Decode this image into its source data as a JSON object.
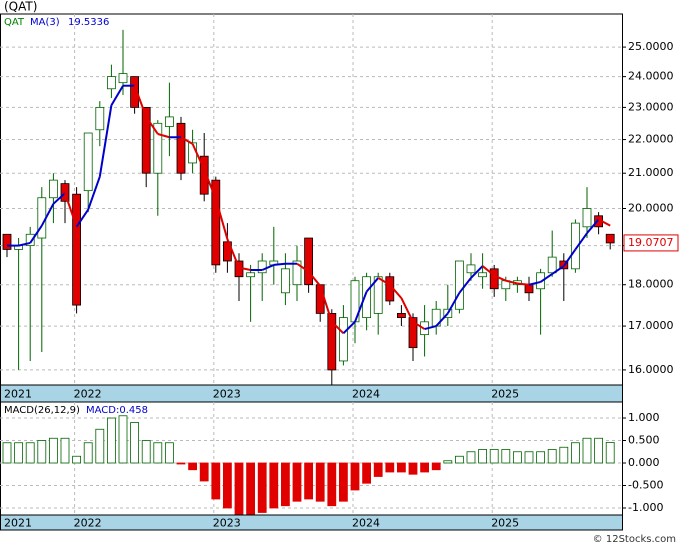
{
  "chart_data": [
    {
      "type": "candlestick",
      "title": "(QAT)",
      "symbol": "QAT",
      "scale": "log",
      "categories": [
        "2021",
        null,
        null,
        null,
        null,
        null,
        "2022",
        null,
        null,
        null,
        null,
        null,
        null,
        null,
        null,
        null,
        null,
        null,
        "2023",
        null,
        null,
        null,
        null,
        null,
        null,
        null,
        null,
        null,
        null,
        null,
        "2024",
        null,
        null,
        null,
        null,
        null,
        null,
        null,
        null,
        null,
        null,
        null,
        "2025",
        null,
        null,
        null,
        null,
        null,
        null,
        null,
        null,
        null,
        null
      ],
      "open": [
        19.3,
        18.9,
        19.0,
        19.2,
        20.3,
        20.7,
        20.4,
        20.5,
        22.3,
        23.6,
        23.8,
        24.0,
        23.0,
        21.0,
        22.4,
        22.5,
        21.3,
        21.5,
        20.8,
        19.1,
        18.6,
        18.2,
        18.3,
        18.5,
        17.8,
        18.0,
        19.2,
        18.0,
        17.3,
        16.2,
        17.1,
        17.2,
        17.3,
        18.2,
        17.3,
        17.2,
        16.8,
        17.0,
        17.2,
        17.4,
        18.3,
        18.2,
        18.4,
        17.9,
        18.0,
        18.0,
        17.9,
        18.3,
        18.6,
        18.4,
        19.5,
        19.8,
        19.3
      ],
      "high": [
        19.3,
        19.2,
        19.5,
        20.6,
        21.0,
        20.8,
        20.6,
        22.2,
        23.2,
        24.4,
        25.6,
        24.0,
        23.0,
        22.6,
        23.8,
        22.7,
        22.3,
        22.2,
        20.9,
        19.6,
        18.8,
        18.5,
        18.8,
        19.5,
        18.8,
        19.0,
        19.2,
        18.0,
        17.4,
        17.5,
        18.2,
        18.3,
        18.3,
        18.3,
        17.5,
        17.3,
        17.5,
        17.6,
        18.0,
        18.6,
        18.8,
        18.8,
        18.5,
        18.2,
        18.2,
        18.2,
        18.4,
        19.4,
        18.8,
        19.7,
        20.6,
        19.9,
        19.3
      ],
      "low": [
        18.7,
        16.0,
        16.2,
        16.4,
        19.6,
        19.6,
        17.3,
        19.9,
        21.8,
        23.3,
        23.4,
        22.8,
        20.6,
        19.8,
        21.5,
        20.8,
        21.0,
        20.2,
        18.3,
        18.3,
        17.6,
        17.1,
        17.6,
        18.0,
        17.5,
        17.6,
        17.8,
        17.1,
        15.6,
        16.1,
        16.6,
        16.9,
        16.8,
        17.5,
        17.0,
        16.2,
        16.3,
        16.8,
        17.0,
        17.3,
        18.1,
        17.9,
        17.7,
        17.6,
        17.8,
        17.6,
        16.8,
        18.2,
        17.6,
        18.3,
        19.2,
        19.3,
        18.9
      ],
      "close": [
        18.9,
        19.0,
        19.3,
        20.3,
        20.8,
        20.2,
        17.5,
        22.2,
        23.0,
        24.0,
        24.1,
        23.0,
        21.0,
        22.5,
        22.7,
        21.0,
        21.9,
        20.4,
        18.5,
        18.6,
        18.2,
        18.3,
        18.6,
        18.6,
        18.4,
        18.6,
        18.0,
        17.3,
        16.0,
        17.2,
        18.1,
        18.2,
        18.2,
        17.6,
        17.2,
        16.5,
        17.1,
        17.4,
        17.4,
        18.6,
        18.5,
        18.3,
        17.9,
        18.1,
        18.1,
        17.8,
        18.3,
        18.7,
        18.4,
        19.6,
        20.0,
        19.5,
        19.0707
      ],
      "ma": {
        "name": "MA(3)",
        "values": [
          19.0,
          19.0,
          19.07,
          19.53,
          20.13,
          20.43,
          19.5,
          19.97,
          20.9,
          23.07,
          23.7,
          23.7,
          22.7,
          22.17,
          22.07,
          22.07,
          21.87,
          21.1,
          20.27,
          19.17,
          18.43,
          18.37,
          18.37,
          18.5,
          18.53,
          18.53,
          18.33,
          17.97,
          17.1,
          16.83,
          17.1,
          17.83,
          18.17,
          18.0,
          17.67,
          17.1,
          16.93,
          17.0,
          17.3,
          17.8,
          18.17,
          18.47,
          18.23,
          18.1,
          18.03,
          18.0,
          18.07,
          18.27,
          18.47,
          18.9,
          19.33,
          19.7,
          19.5336
        ]
      },
      "up_color": "#006400",
      "down_color": "#e00000",
      "ma_up_color": "#0000cc",
      "ma_down_color": "#e00000",
      "symbol_color": "#008000",
      "ylim": [
        15.67,
        26.17
      ],
      "yticks": [
        {
          "value": 16,
          "label": "16.0000"
        },
        {
          "value": 17,
          "label": "17.0000"
        },
        {
          "value": 18,
          "label": "18.0000"
        },
        {
          "value": 19,
          "label": "19.0000"
        },
        {
          "value": 20,
          "label": "20.0000"
        },
        {
          "value": 21,
          "label": "21.0000"
        },
        {
          "value": 22,
          "label": "22.0000"
        },
        {
          "value": 23,
          "label": "23.0000"
        },
        {
          "value": 24,
          "label": "24.0000"
        },
        {
          "value": 25,
          "label": "25.0000"
        }
      ],
      "grid": true
    },
    {
      "type": "bar",
      "name": "MACD(26,12,9)",
      "last_label": "MACD:0.458",
      "values": [
        0.45,
        0.45,
        0.45,
        0.5,
        0.55,
        0.55,
        0.15,
        0.45,
        0.75,
        1.0,
        1.05,
        0.9,
        0.5,
        0.45,
        0.45,
        -0.02,
        -0.15,
        -0.4,
        -0.8,
        -1.0,
        -1.15,
        -1.15,
        -1.1,
        -1.0,
        -0.95,
        -0.85,
        -0.8,
        -0.85,
        -0.95,
        -0.85,
        -0.6,
        -0.45,
        -0.3,
        -0.2,
        -0.2,
        -0.25,
        -0.2,
        -0.15,
        0.05,
        0.15,
        0.25,
        0.3,
        0.3,
        0.3,
        0.25,
        0.25,
        0.25,
        0.3,
        0.35,
        0.45,
        0.55,
        0.55,
        0.458
      ],
      "up_color": "#006400",
      "down_color": "#e00000",
      "ylim": [
        -1.156,
        1.356
      ],
      "yticks": [
        {
          "value": -1,
          "label": "-1.000"
        },
        {
          "value": -0.5,
          "label": "-0.500"
        },
        {
          "value": 0,
          "label": "0.000"
        },
        {
          "value": 0.5,
          "label": "0.500"
        },
        {
          "value": 1,
          "label": "1.000"
        }
      ],
      "grid": true
    }
  ],
  "footer": "© 12Stocks.com"
}
